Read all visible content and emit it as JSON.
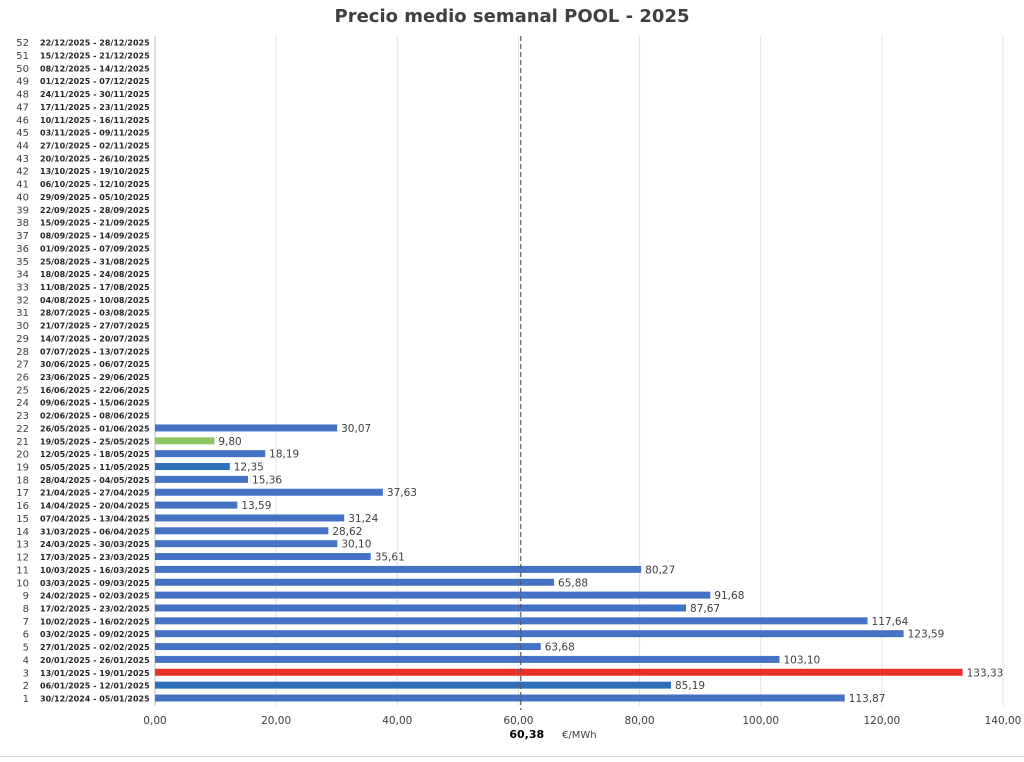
{
  "chart_data": {
    "type": "bar",
    "orientation": "horizontal",
    "title": "Precio medio semanal POOL - 2025",
    "xlabel": "€/MWh",
    "xlim": [
      0,
      140
    ],
    "x_ticks": [
      "0,00",
      "20,00",
      "40,00",
      "60,00",
      "80,00",
      "100,00",
      "120,00",
      "140,00"
    ],
    "grid": true,
    "reference_line": {
      "value": 60.38,
      "label": "60,38",
      "style": "dashed"
    },
    "colors": {
      "default": "#4472c4",
      "highlight_max": "#e8302a",
      "highlight_min": "#8cc665",
      "highlight_alt": "#2e6fb7",
      "average_line": "#595959"
    },
    "categories": [
      {
        "num": "1",
        "week": "30/12/2024 - 05/01/2025",
        "value": 113.87,
        "label": "113,87",
        "highlight": "default"
      },
      {
        "num": "2",
        "week": "06/01/2025 - 12/01/2025",
        "value": 85.19,
        "label": "85,19",
        "highlight": "alt"
      },
      {
        "num": "3",
        "week": "13/01/2025 - 19/01/2025",
        "value": 133.33,
        "label": "133,33",
        "highlight": "max"
      },
      {
        "num": "4",
        "week": "20/01/2025 - 26/01/2025",
        "value": 103.1,
        "label": "103,10",
        "highlight": "default"
      },
      {
        "num": "5",
        "week": "27/01/2025 - 02/02/2025",
        "value": 63.68,
        "label": "63,68",
        "highlight": "default"
      },
      {
        "num": "6",
        "week": "03/02/2025 - 09/02/2025",
        "value": 123.59,
        "label": "123,59",
        "highlight": "default"
      },
      {
        "num": "7",
        "week": "10/02/2025 - 16/02/2025",
        "value": 117.64,
        "label": "117,64",
        "highlight": "default"
      },
      {
        "num": "8",
        "week": "17/02/2025 - 23/02/2025",
        "value": 87.67,
        "label": "87,67",
        "highlight": "default"
      },
      {
        "num": "9",
        "week": "24/02/2025 - 02/03/2025",
        "value": 91.68,
        "label": "91,68",
        "highlight": "default"
      },
      {
        "num": "10",
        "week": "03/03/2025 - 09/03/2025",
        "value": 65.88,
        "label": "65,88",
        "highlight": "default"
      },
      {
        "num": "11",
        "week": "10/03/2025 - 16/03/2025",
        "value": 80.27,
        "label": "80,27",
        "highlight": "default"
      },
      {
        "num": "12",
        "week": "17/03/2025 - 23/03/2025",
        "value": 35.61,
        "label": "35,61",
        "highlight": "default"
      },
      {
        "num": "13",
        "week": "24/03/2025 - 30/03/2025",
        "value": 30.1,
        "label": "30,10",
        "highlight": "default"
      },
      {
        "num": "14",
        "week": "31/03/2025 - 06/04/2025",
        "value": 28.62,
        "label": "28,62",
        "highlight": "default"
      },
      {
        "num": "15",
        "week": "07/04/2025 - 13/04/2025",
        "value": 31.24,
        "label": "31,24",
        "highlight": "default"
      },
      {
        "num": "16",
        "week": "14/04/2025 - 20/04/2025",
        "value": 13.59,
        "label": "13,59",
        "highlight": "default"
      },
      {
        "num": "17",
        "week": "21/04/2025 - 27/04/2025",
        "value": 37.63,
        "label": "37,63",
        "highlight": "default"
      },
      {
        "num": "18",
        "week": "28/04/2025 - 04/05/2025",
        "value": 15.36,
        "label": "15,36",
        "highlight": "default"
      },
      {
        "num": "19",
        "week": "05/05/2025 - 11/05/2025",
        "value": 12.35,
        "label": "12,35",
        "highlight": "alt"
      },
      {
        "num": "20",
        "week": "12/05/2025 - 18/05/2025",
        "value": 18.19,
        "label": "18,19",
        "highlight": "default"
      },
      {
        "num": "21",
        "week": "19/05/2025 - 25/05/2025",
        "value": 9.8,
        "label": "9,80",
        "highlight": "min"
      },
      {
        "num": "22",
        "week": "26/05/2025 - 01/06/2025",
        "value": 30.07,
        "label": "30,07",
        "highlight": "default"
      },
      {
        "num": "23",
        "week": "02/06/2025 - 08/06/2025",
        "value": null,
        "label": "",
        "highlight": "default"
      },
      {
        "num": "24",
        "week": "09/06/2025 - 15/06/2025",
        "value": null,
        "label": "",
        "highlight": "default"
      },
      {
        "num": "25",
        "week": "16/06/2025 - 22/06/2025",
        "value": null,
        "label": "",
        "highlight": "default"
      },
      {
        "num": "26",
        "week": "23/06/2025 - 29/06/2025",
        "value": null,
        "label": "",
        "highlight": "default"
      },
      {
        "num": "27",
        "week": "30/06/2025 - 06/07/2025",
        "value": null,
        "label": "",
        "highlight": "default"
      },
      {
        "num": "28",
        "week": "07/07/2025 - 13/07/2025",
        "value": null,
        "label": "",
        "highlight": "default"
      },
      {
        "num": "29",
        "week": "14/07/2025 - 20/07/2025",
        "value": null,
        "label": "",
        "highlight": "default"
      },
      {
        "num": "30",
        "week": "21/07/2025 - 27/07/2025",
        "value": null,
        "label": "",
        "highlight": "default"
      },
      {
        "num": "31",
        "week": "28/07/2025 - 03/08/2025",
        "value": null,
        "label": "",
        "highlight": "default"
      },
      {
        "num": "32",
        "week": "04/08/2025 - 10/08/2025",
        "value": null,
        "label": "",
        "highlight": "default"
      },
      {
        "num": "33",
        "week": "11/08/2025 - 17/08/2025",
        "value": null,
        "label": "",
        "highlight": "default"
      },
      {
        "num": "34",
        "week": "18/08/2025 - 24/08/2025",
        "value": null,
        "label": "",
        "highlight": "default"
      },
      {
        "num": "35",
        "week": "25/08/2025 - 31/08/2025",
        "value": null,
        "label": "",
        "highlight": "default"
      },
      {
        "num": "36",
        "week": "01/09/2025 - 07/09/2025",
        "value": null,
        "label": "",
        "highlight": "default"
      },
      {
        "num": "37",
        "week": "08/09/2025 - 14/09/2025",
        "value": null,
        "label": "",
        "highlight": "default"
      },
      {
        "num": "38",
        "week": "15/09/2025 - 21/09/2025",
        "value": null,
        "label": "",
        "highlight": "default"
      },
      {
        "num": "39",
        "week": "22/09/2025 - 28/09/2025",
        "value": null,
        "label": "",
        "highlight": "default"
      },
      {
        "num": "40",
        "week": "29/09/2025 - 05/10/2025",
        "value": null,
        "label": "",
        "highlight": "default"
      },
      {
        "num": "41",
        "week": "06/10/2025 - 12/10/2025",
        "value": null,
        "label": "",
        "highlight": "default"
      },
      {
        "num": "42",
        "week": "13/10/2025 - 19/10/2025",
        "value": null,
        "label": "",
        "highlight": "default"
      },
      {
        "num": "43",
        "week": "20/10/2025 - 26/10/2025",
        "value": null,
        "label": "",
        "highlight": "default"
      },
      {
        "num": "44",
        "week": "27/10/2025 - 02/11/2025",
        "value": null,
        "label": "",
        "highlight": "default"
      },
      {
        "num": "45",
        "week": "03/11/2025 - 09/11/2025",
        "value": null,
        "label": "",
        "highlight": "default"
      },
      {
        "num": "46",
        "week": "10/11/2025 - 16/11/2025",
        "value": null,
        "label": "",
        "highlight": "default"
      },
      {
        "num": "47",
        "week": "17/11/2025 - 23/11/2025",
        "value": null,
        "label": "",
        "highlight": "default"
      },
      {
        "num": "48",
        "week": "24/11/2025 - 30/11/2025",
        "value": null,
        "label": "",
        "highlight": "default"
      },
      {
        "num": "49",
        "week": "01/12/2025 - 07/12/2025",
        "value": null,
        "label": "",
        "highlight": "default"
      },
      {
        "num": "50",
        "week": "08/12/2025 - 14/12/2025",
        "value": null,
        "label": "",
        "highlight": "default"
      },
      {
        "num": "51",
        "week": "15/12/2025 - 21/12/2025",
        "value": null,
        "label": "",
        "highlight": "default"
      },
      {
        "num": "52",
        "week": "22/12/2025 - 28/12/2025",
        "value": null,
        "label": "",
        "highlight": "default"
      }
    ]
  }
}
